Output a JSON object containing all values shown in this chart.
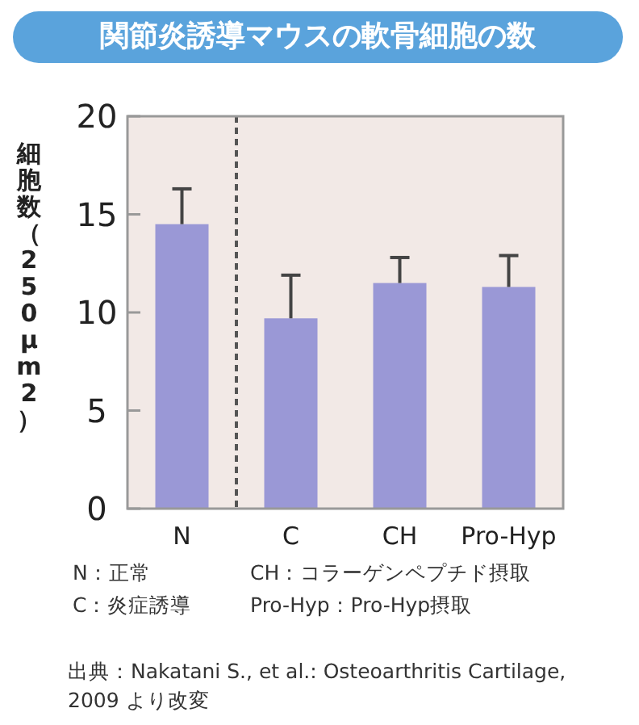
{
  "chart_data": {
    "type": "bar",
    "title": "関節炎誘導マウスの軟骨細胞の数",
    "ylabel": "細胞数（250μm2）",
    "categories": [
      "N",
      "C",
      "CH",
      "Pro-Hyp"
    ],
    "values": [
      14.5,
      9.7,
      11.5,
      11.3
    ],
    "errors": [
      [
        14.5,
        16.3
      ],
      [
        9.7,
        11.9
      ],
      [
        11.5,
        12.8
      ],
      [
        11.3,
        12.9
      ]
    ],
    "color": "#9a98d6",
    "ylim": [
      0,
      20
    ],
    "yticks": [
      0,
      5,
      10,
      15,
      20
    ],
    "annotations": [
      "N：正常",
      "CH：コラーゲンペプチド摂取",
      "C：炎症誘導",
      "Pro-Hyp：Pro-Hyp摂取",
      "出典：Nakatani S., et al.: Osteoarthritis Cartilage, 2009 より改変"
    ]
  }
}
